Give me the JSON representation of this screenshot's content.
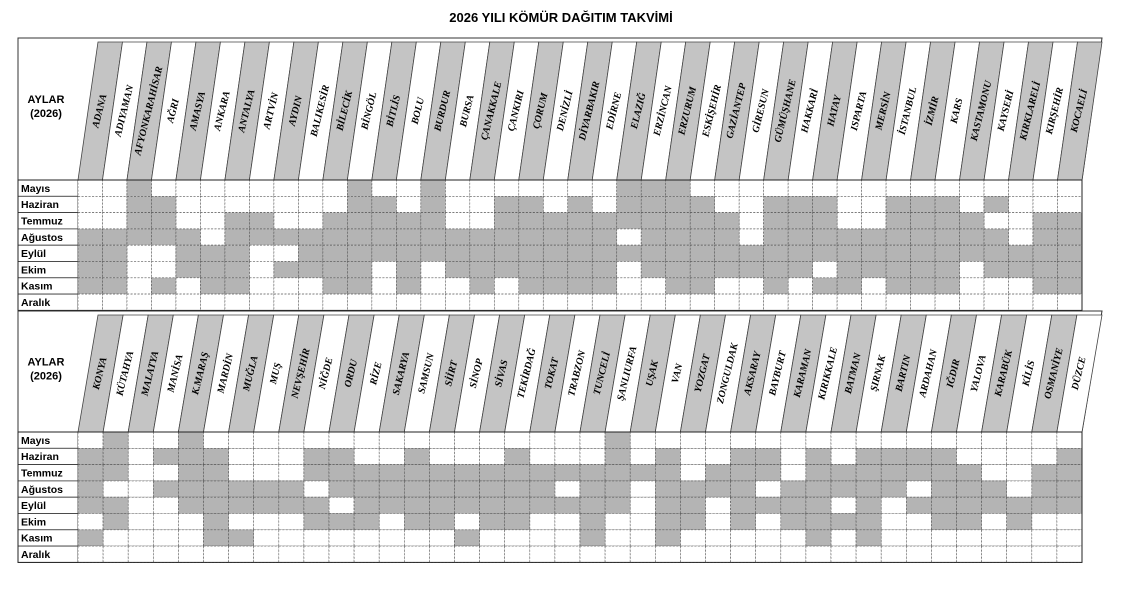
{
  "title": "2026 YILI KÖMÜR DAĞITIM TAKVİMİ",
  "corner_label": [
    "AYLAR",
    "(2026)"
  ],
  "months": [
    "Mayıs",
    "Haziran",
    "Temmuz",
    "Ağustos",
    "Eylül",
    "Ekim",
    "Kasım",
    "Aralık"
  ],
  "sections": [
    {
      "provinces": [
        "ADANA",
        "ADIYAMAN",
        "AFYONKARAHİSAR",
        "AĞRI",
        "AMASYA",
        "ANKARA",
        "ANTALYA",
        "ARTVİN",
        "AYDIN",
        "BALIKESİR",
        "BİLECİK",
        "BİNGÖL",
        "BİTLİS",
        "BOLU",
        "BURDUR",
        "BURSA",
        "ÇANAKKALE",
        "ÇANKIRI",
        "ÇORUM",
        "DENİZLİ",
        "DİYARBAKIR",
        "EDİRNE",
        "ELAZIĞ",
        "ERZİNCAN",
        "ERZURUM",
        "ESKİŞEHİR",
        "GAZİANTEP",
        "GİRESUN",
        "GÜMÜŞHANE",
        "HAKKARİ",
        "HATAY",
        "ISPARTA",
        "MERSİN",
        "İSTANBUL",
        "İZMİR",
        "KARS",
        "KASTAMONU",
        "KAYSERİ",
        "KIRKLARELİ",
        "KIRŞEHİR",
        "KOCAELİ"
      ],
      "shaded": [
        [
          2,
          11,
          14,
          22,
          23,
          24
        ],
        [
          2,
          3,
          11,
          12,
          14,
          17,
          18,
          20,
          22,
          23,
          24,
          25,
          28,
          29,
          30,
          33,
          34,
          35,
          37
        ],
        [
          2,
          3,
          6,
          7,
          10,
          11,
          12,
          13,
          14,
          17,
          18,
          19,
          20,
          21,
          22,
          23,
          24,
          25,
          26,
          28,
          29,
          30,
          33,
          34,
          35,
          36,
          39,
          40
        ],
        [
          0,
          1,
          2,
          3,
          4,
          6,
          7,
          8,
          9,
          10,
          11,
          12,
          13,
          14,
          15,
          16,
          17,
          18,
          19,
          20,
          21,
          23,
          24,
          25,
          26,
          28,
          29,
          30,
          31,
          32,
          33,
          34,
          35,
          36,
          37,
          39,
          40
        ],
        [
          0,
          1,
          4,
          5,
          6,
          9,
          10,
          11,
          12,
          13,
          14,
          15,
          16,
          17,
          18,
          19,
          20,
          21,
          22,
          23,
          24,
          25,
          26,
          27,
          28,
          29,
          30,
          31,
          32,
          33,
          34,
          35,
          36,
          37,
          38,
          39,
          40
        ],
        [
          0,
          1,
          4,
          5,
          6,
          8,
          9,
          10,
          11,
          13,
          15,
          16,
          17,
          18,
          19,
          20,
          21,
          23,
          24,
          25,
          26,
          27,
          28,
          29,
          31,
          32,
          33,
          34,
          35,
          37,
          38,
          39,
          40
        ],
        [
          0,
          1,
          3,
          5,
          6,
          10,
          11,
          13,
          16,
          18,
          19,
          20,
          21,
          24,
          25,
          28,
          30,
          31,
          33,
          34,
          35,
          39,
          40
        ],
        []
      ]
    },
    {
      "provinces": [
        "KONYA",
        "KÜTAHYA",
        "MALATYA",
        "MANİSA",
        "K.MARAŞ",
        "MARDİN",
        "MUĞLA",
        "MUŞ",
        "NEVŞEHİR",
        "NİĞDE",
        "ORDU",
        "RİZE",
        "SAKARYA",
        "SAMSUN",
        "SİİRT",
        "SİNOP",
        "SİVAS",
        "TEKİRDAĞ",
        "TOKAT",
        "TRABZON",
        "TUNCELİ",
        "ŞANLIURFA",
        "UŞAK",
        "VAN",
        "YOZGAT",
        "ZONGULDAK",
        "AKSARAY",
        "BAYBURT",
        "KARAMAN",
        "KIRIKKALE",
        "BATMAN",
        "ŞIRNAK",
        "BARTIN",
        "ARDAHAN",
        "IĞDIR",
        "YALOVA",
        "KARABÜK",
        "KİLİS",
        "OSMANİYE",
        "DÜZCE"
      ],
      "shaded": [
        [
          1,
          4,
          21
        ],
        [
          0,
          1,
          3,
          4,
          5,
          9,
          10,
          13,
          17,
          21,
          23,
          26,
          27,
          29,
          31,
          32,
          33,
          34,
          39
        ],
        [
          0,
          1,
          4,
          5,
          9,
          10,
          11,
          12,
          13,
          14,
          15,
          16,
          17,
          18,
          19,
          20,
          21,
          22,
          23,
          25,
          26,
          27,
          29,
          30,
          31,
          32,
          33,
          34,
          35,
          38,
          39
        ],
        [
          0,
          3,
          4,
          5,
          6,
          7,
          8,
          10,
          11,
          12,
          13,
          14,
          15,
          16,
          17,
          18,
          20,
          21,
          23,
          24,
          25,
          26,
          28,
          29,
          30,
          31,
          32,
          34,
          35,
          36,
          38,
          39
        ],
        [
          0,
          1,
          4,
          5,
          6,
          7,
          8,
          9,
          11,
          12,
          13,
          14,
          15,
          16,
          17,
          18,
          19,
          20,
          21,
          23,
          24,
          26,
          27,
          28,
          29,
          31,
          33,
          34,
          35,
          36,
          37,
          38,
          39
        ],
        [
          1,
          5,
          9,
          10,
          11,
          13,
          14,
          16,
          17,
          20,
          23,
          24,
          26,
          28,
          29,
          30,
          31,
          34,
          35,
          37
        ],
        [
          0,
          5,
          6,
          15,
          20,
          23,
          29,
          31
        ],
        []
      ]
    }
  ]
}
